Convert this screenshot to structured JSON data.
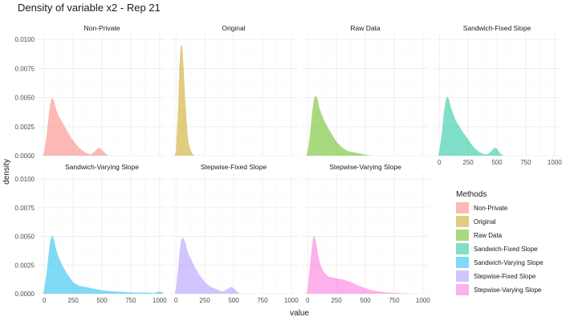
{
  "chart_data": {
    "type": "area",
    "title": "Density of variable x2 - Rep 21",
    "xlabel": "value",
    "ylabel": "density",
    "xlim": [
      -50,
      1050
    ],
    "ylim": [
      0,
      0.0105
    ],
    "x_ticks": [
      0,
      250,
      500,
      750,
      1000
    ],
    "y_ticks": [
      0,
      0.0025,
      0.005,
      0.0075,
      0.01
    ],
    "y_tick_labels": [
      "0.0000",
      "0.0025",
      "0.0050",
      "0.0075",
      "0.0100"
    ],
    "grid": true,
    "legend": {
      "title": "Methods",
      "placement": "right",
      "entries": [
        "Non-Private",
        "Original",
        "Raw Data",
        "Sandwich-Fixed Slope",
        "Sandwich-Varying Slope",
        "Stepwise-Fixed Slope",
        "Stepwise-Varying Slope"
      ]
    },
    "series": [
      {
        "name": "Non-Private",
        "color": "#F8766D",
        "x": [
          -10,
          0,
          20,
          40,
          55,
          70,
          85,
          100,
          120,
          150,
          200,
          250,
          300,
          350,
          400,
          430,
          460,
          480,
          500,
          520,
          540,
          560
        ],
        "y": [
          0,
          0.0004,
          0.0018,
          0.0036,
          0.0047,
          0.005,
          0.0047,
          0.0041,
          0.0035,
          0.003,
          0.0021,
          0.0013,
          0.0007,
          0.0003,
          0.0001,
          0.0003,
          0.0006,
          0.0007,
          0.0005,
          0.0003,
          0.0001,
          0
        ]
      },
      {
        "name": "Original",
        "color": "#C49A00",
        "x": [
          -10,
          0,
          20,
          30,
          40,
          50,
          60,
          70,
          80,
          90,
          100,
          110,
          125,
          140,
          160
        ],
        "y": [
          0,
          0.0004,
          0.0045,
          0.0078,
          0.0094,
          0.0096,
          0.0087,
          0.0068,
          0.0049,
          0.0033,
          0.002,
          0.0011,
          0.0005,
          0.0002,
          0
        ]
      },
      {
        "name": "Raw Data",
        "color": "#53B400",
        "x": [
          -10,
          0,
          20,
          40,
          55,
          70,
          85,
          100,
          120,
          150,
          200,
          250,
          300,
          350,
          400,
          450,
          500,
          550
        ],
        "y": [
          0,
          0.0004,
          0.0018,
          0.0038,
          0.0049,
          0.0052,
          0.0049,
          0.0042,
          0.0036,
          0.0029,
          0.002,
          0.0012,
          0.0007,
          0.0004,
          0.0003,
          0.0002,
          0.0001,
          0
        ]
      },
      {
        "name": "Sandwich-Fixed Slope",
        "color": "#00C094",
        "x": [
          -10,
          0,
          20,
          40,
          55,
          70,
          85,
          100,
          120,
          150,
          200,
          250,
          300,
          350,
          400,
          430,
          460,
          480,
          500,
          520,
          540,
          560
        ],
        "y": [
          0,
          0.0004,
          0.0018,
          0.0037,
          0.0048,
          0.0051,
          0.0048,
          0.0042,
          0.0036,
          0.0029,
          0.0021,
          0.0014,
          0.0007,
          0.0003,
          0.0001,
          0.0002,
          0.0005,
          0.0007,
          0.0006,
          0.0003,
          0.0001,
          0
        ]
      },
      {
        "name": "Sandwich-Varying Slope",
        "color": "#00B6EB",
        "x": [
          -10,
          0,
          20,
          40,
          55,
          70,
          85,
          100,
          120,
          150,
          200,
          250,
          300,
          350,
          400,
          450,
          500,
          600,
          700,
          800,
          900,
          950,
          1000,
          1030
        ],
        "y": [
          0,
          0.0004,
          0.0018,
          0.0037,
          0.0048,
          0.0051,
          0.0047,
          0.004,
          0.0033,
          0.0026,
          0.0017,
          0.001,
          0.0007,
          0.0006,
          0.0005,
          0.0004,
          0.0003,
          0.0002,
          0.00015,
          0.0001,
          0.0001,
          5e-05,
          0.0002,
          0.0001
        ]
      },
      {
        "name": "Stepwise-Fixed Slope",
        "color": "#A58AFF",
        "x": [
          -10,
          0,
          20,
          30,
          45,
          60,
          80,
          100,
          130,
          160,
          200,
          250,
          300,
          350,
          400,
          430,
          460,
          480,
          500,
          520,
          540,
          560
        ],
        "y": [
          0,
          0.0005,
          0.0024,
          0.0036,
          0.0047,
          0.0049,
          0.0045,
          0.0037,
          0.003,
          0.0024,
          0.0017,
          0.001,
          0.0006,
          0.0004,
          0.0002,
          0.0003,
          0.0005,
          0.0006,
          0.0005,
          0.0003,
          0.0001,
          0
        ]
      },
      {
        "name": "Stepwise-Varying Slope",
        "color": "#FB61D7",
        "x": [
          -10,
          0,
          20,
          40,
          50,
          60,
          75,
          90,
          110,
          140,
          180,
          220,
          270,
          320,
          380,
          440,
          500,
          560,
          620,
          700,
          800,
          900
        ],
        "y": [
          0,
          0.0005,
          0.0025,
          0.0043,
          0.005,
          0.005,
          0.0044,
          0.0034,
          0.0025,
          0.0019,
          0.0015,
          0.0014,
          0.0013,
          0.0012,
          0.001,
          0.0007,
          0.0005,
          0.0003,
          0.0002,
          0.0001,
          5e-05,
          0
        ]
      }
    ]
  }
}
